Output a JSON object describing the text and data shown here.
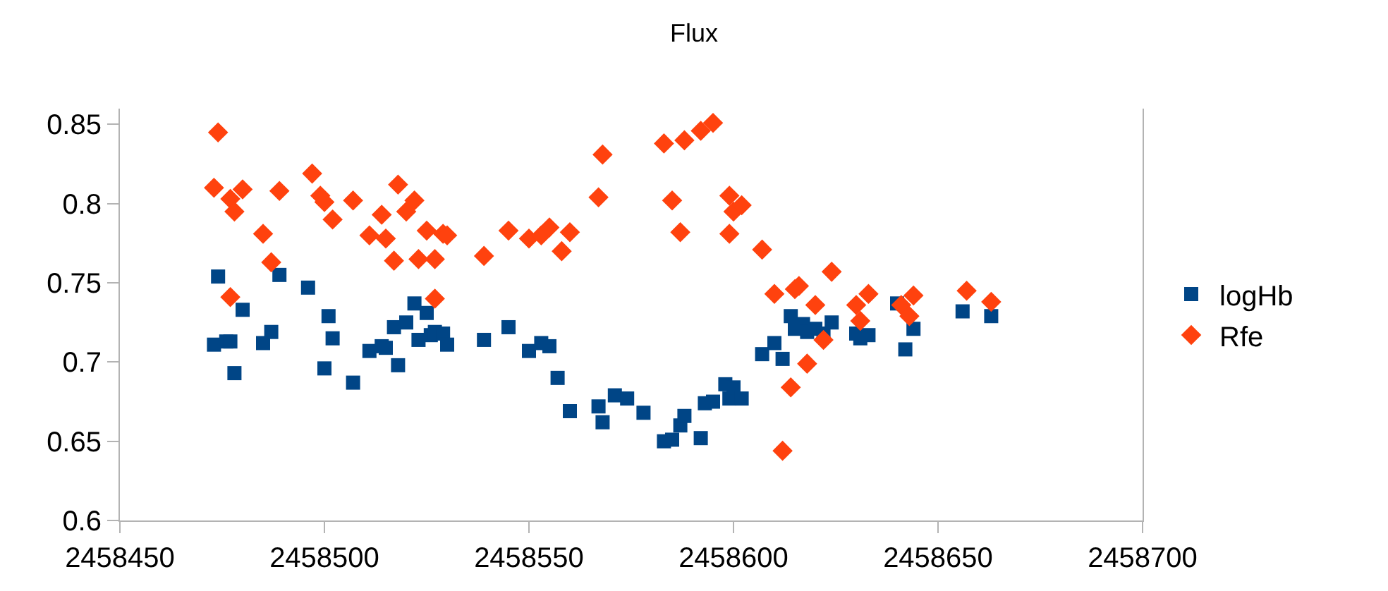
{
  "chart_data": {
    "type": "scatter",
    "title": "Flux",
    "xlim": [
      2458450,
      2458700
    ],
    "xticks": [
      2458450,
      2458500,
      2458550,
      2458600,
      2458650,
      2458700
    ],
    "ylim": [
      0.6,
      0.86
    ],
    "yticks": [
      0.6,
      0.65,
      0.7,
      0.75,
      0.8,
      0.85
    ],
    "grid": false,
    "legend": "right",
    "series": [
      {
        "name": "logHb",
        "color": "#004586",
        "marker": "square",
        "x": [
          2458473,
          2458474,
          2458476,
          2458477,
          2458478,
          2458480,
          2458485,
          2458487,
          2458489,
          2458496,
          2458500,
          2458501,
          2458502,
          2458507,
          2458511,
          2458514,
          2458515,
          2458517,
          2458518,
          2458520,
          2458522,
          2458523,
          2458525,
          2458526,
          2458527,
          2458529,
          2458530,
          2458539,
          2458545,
          2458550,
          2458553,
          2458555,
          2458557,
          2458560,
          2458567,
          2458568,
          2458571,
          2458574,
          2458578,
          2458583,
          2458585,
          2458587,
          2458588,
          2458592,
          2458593,
          2458595,
          2458598,
          2458599,
          2458600,
          2458602,
          2458607,
          2458610,
          2458612,
          2458614,
          2458615,
          2458617,
          2458618,
          2458620,
          2458622,
          2458624,
          2458630,
          2458631,
          2458633,
          2458640,
          2458642,
          2458644,
          2458656,
          2458663
        ],
        "values": [
          0.711,
          0.754,
          0.713,
          0.713,
          0.693,
          0.733,
          0.712,
          0.719,
          0.755,
          0.747,
          0.696,
          0.729,
          0.715,
          0.687,
          0.707,
          0.71,
          0.709,
          0.722,
          0.698,
          0.725,
          0.737,
          0.714,
          0.731,
          0.717,
          0.719,
          0.718,
          0.711,
          0.714,
          0.722,
          0.707,
          0.712,
          0.71,
          0.69,
          0.669,
          0.672,
          0.662,
          0.679,
          0.677,
          0.668,
          0.65,
          0.651,
          0.66,
          0.666,
          0.652,
          0.674,
          0.675,
          0.686,
          0.677,
          0.684,
          0.677,
          0.705,
          0.712,
          0.702,
          0.729,
          0.721,
          0.724,
          0.719,
          0.721,
          0.718,
          0.725,
          0.718,
          0.715,
          0.717,
          0.737,
          0.708,
          0.721,
          0.732,
          0.729
        ]
      },
      {
        "name": "Rfe",
        "color": "#ff420e",
        "marker": "diamond",
        "x": [
          2458473,
          2458474,
          2458477,
          2458477,
          2458478,
          2458480,
          2458485,
          2458487,
          2458489,
          2458497,
          2458499,
          2458500,
          2458502,
          2458507,
          2458511,
          2458514,
          2458515,
          2458517,
          2458518,
          2458520,
          2458522,
          2458523,
          2458525,
          2458527,
          2458527,
          2458529,
          2458530,
          2458539,
          2458545,
          2458550,
          2458553,
          2458555,
          2458558,
          2458560,
          2458567,
          2458568,
          2458574,
          2458583,
          2458585,
          2458587,
          2458588,
          2458592,
          2458593,
          2458595,
          2458599,
          2458599,
          2458600,
          2458602,
          2458607,
          2458610,
          2458612,
          2458614,
          2458615,
          2458616,
          2458618,
          2458620,
          2458622,
          2458624,
          2458630,
          2458631,
          2458633,
          2458641,
          2458643,
          2458644,
          2458657,
          2458663
        ],
        "values": [
          0.81,
          0.845,
          0.803,
          0.741,
          0.795,
          0.809,
          0.781,
          0.763,
          0.808,
          0.819,
          0.805,
          0.801,
          0.79,
          0.802,
          0.78,
          0.793,
          0.778,
          0.764,
          0.812,
          0.795,
          0.802,
          0.765,
          0.783,
          0.74,
          0.765,
          0.781,
          0.78,
          0.767,
          0.783,
          0.778,
          0.78,
          0.785,
          0.77,
          0.782,
          0.804,
          0.831,
          null,
          0.838,
          0.802,
          0.782,
          0.84,
          0.846,
          null,
          0.851,
          0.805,
          0.781,
          0.795,
          0.799,
          0.771,
          0.743,
          0.644,
          0.684,
          0.746,
          0.748,
          0.699,
          0.736,
          0.714,
          0.757,
          0.736,
          0.726,
          0.743,
          0.736,
          0.729,
          0.742,
          0.745,
          0.738
        ]
      }
    ]
  }
}
